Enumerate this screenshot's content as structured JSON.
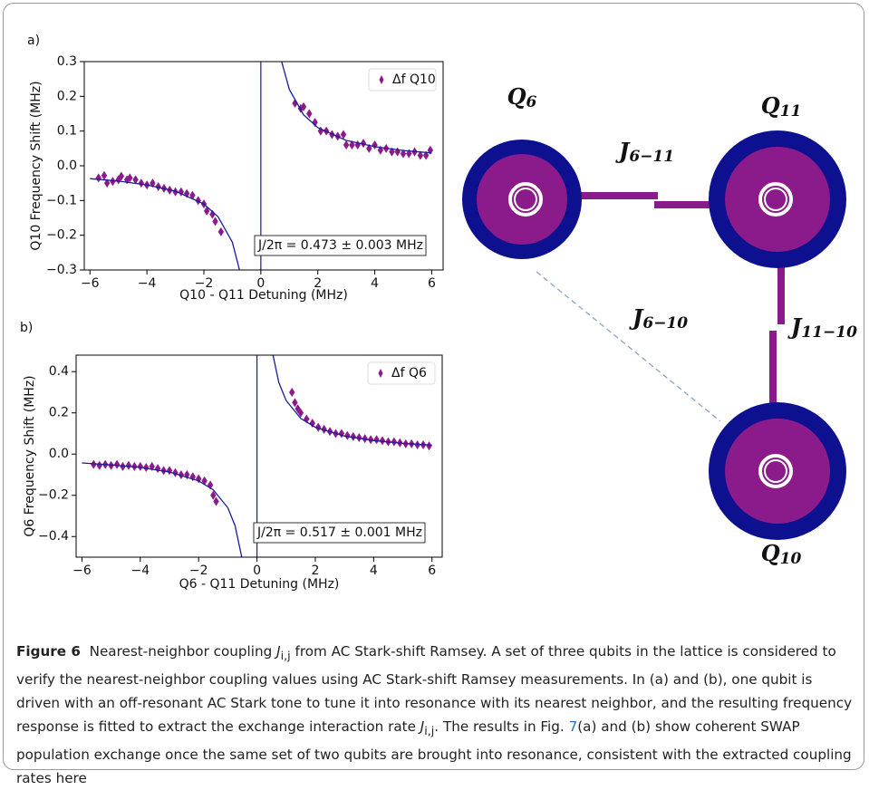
{
  "chart_data": [
    {
      "type": "scatter",
      "panel": "a)",
      "xlabel": "Q10 - Q11 Detuning (MHz)",
      "ylabel": "Q10 Frequency Shift (MHz)",
      "xlim": [
        -6.2,
        6.4
      ],
      "ylim": [
        -0.3,
        0.3
      ],
      "xticks": [
        {
          "value": -6,
          "label": "−6"
        },
        {
          "value": -4,
          "label": "−4"
        },
        {
          "value": -2,
          "label": "−2"
        },
        0,
        2,
        4,
        6
      ],
      "yticks": [
        {
          "value": -0.3,
          "label": "−0.3"
        },
        {
          "value": -0.2,
          "label": "−0.2"
        },
        {
          "value": -0.1,
          "label": "−0.1"
        },
        {
          "value": 0,
          "label": "0.0"
        },
        0.1,
        0.2,
        0.3
      ],
      "vline": 0,
      "legend": "upper right",
      "annotation": "J/2π = 0.473 ± 0.003 MHz",
      "series": [
        {
          "name": "Δf  Q10",
          "style": "markers",
          "color": "#8b1a8b",
          "x": [
            -5.7,
            -5.5,
            -5.4,
            -5.2,
            -5.0,
            -4.9,
            -4.7,
            -4.6,
            -4.4,
            -4.2,
            -4.0,
            -3.8,
            -3.6,
            -3.4,
            -3.2,
            -3.0,
            -2.8,
            -2.6,
            -2.4,
            -2.2,
            -2.0,
            -1.9,
            -1.7,
            -1.6,
            -1.4,
            1.2,
            1.4,
            1.5,
            1.7,
            1.9,
            2.1,
            2.3,
            2.5,
            2.7,
            2.9,
            3.0,
            3.2,
            3.4,
            3.6,
            3.8,
            4.0,
            4.2,
            4.4,
            4.6,
            4.8,
            5.0,
            5.2,
            5.4,
            5.6,
            5.8,
            5.95
          ],
          "values": [
            -0.035,
            -0.028,
            -0.05,
            -0.045,
            -0.04,
            -0.03,
            -0.04,
            -0.035,
            -0.04,
            -0.05,
            -0.055,
            -0.05,
            -0.06,
            -0.065,
            -0.07,
            -0.075,
            -0.075,
            -0.08,
            -0.085,
            -0.1,
            -0.11,
            -0.13,
            -0.14,
            -0.16,
            -0.19,
            0.18,
            0.165,
            0.17,
            0.15,
            0.125,
            0.1,
            0.1,
            0.09,
            0.085,
            0.09,
            0.06,
            0.06,
            0.06,
            0.065,
            0.05,
            0.06,
            0.045,
            0.05,
            0.04,
            0.04,
            0.035,
            0.035,
            0.04,
            0.03,
            0.03,
            0.045
          ]
        },
        {
          "style": "line",
          "color": "#1a1a9c",
          "x": [
            -6,
            -5,
            -4,
            -3,
            -2,
            -1.5,
            -1,
            -0.75,
            null,
            0.73,
            1,
            1.5,
            2,
            3,
            4,
            5,
            6
          ],
          "values": [
            -0.037,
            -0.044,
            -0.055,
            -0.073,
            -0.11,
            -0.147,
            -0.22,
            -0.3,
            null,
            0.3,
            0.22,
            0.147,
            0.11,
            0.073,
            0.055,
            0.044,
            0.037
          ]
        }
      ]
    },
    {
      "type": "scatter",
      "panel": "b)",
      "xlabel": "Q6 - Q11 Detuning (MHz)",
      "ylabel": "Q6 Frequency Shift (MHz)",
      "xlim": [
        -6.2,
        6.35
      ],
      "ylim": [
        -0.5,
        0.48
      ],
      "xticks": [
        {
          "value": -6,
          "label": "−6"
        },
        {
          "value": -4,
          "label": "−4"
        },
        {
          "value": -2,
          "label": "−2"
        },
        0,
        2,
        4,
        6
      ],
      "yticks": [
        {
          "value": -0.4,
          "label": "−0.4"
        },
        {
          "value": -0.2,
          "label": "−0.2"
        },
        {
          "value": 0,
          "label": "0.0"
        },
        0.2,
        0.4
      ],
      "vline": 0,
      "legend": "upper right",
      "annotation": "J/2π = 0.517 ± 0.001 MHz",
      "series": [
        {
          "name": "Δf  Q6",
          "style": "markers",
          "color": "#8b1a8b",
          "x": [
            -5.6,
            -5.4,
            -5.2,
            -5.0,
            -4.8,
            -4.6,
            -4.4,
            -4.2,
            -4.0,
            -3.8,
            -3.6,
            -3.4,
            -3.2,
            -3.0,
            -2.8,
            -2.6,
            -2.4,
            -2.2,
            -2.0,
            -1.8,
            -1.6,
            -1.5,
            -1.4,
            1.2,
            1.3,
            1.4,
            1.5,
            1.7,
            1.9,
            2.1,
            2.3,
            2.5,
            2.7,
            2.9,
            3.1,
            3.3,
            3.5,
            3.7,
            3.9,
            4.1,
            4.3,
            4.5,
            4.7,
            4.9,
            5.1,
            5.3,
            5.5,
            5.7,
            5.9
          ],
          "values": [
            -0.05,
            -0.055,
            -0.05,
            -0.055,
            -0.05,
            -0.06,
            -0.055,
            -0.06,
            -0.06,
            -0.065,
            -0.06,
            -0.07,
            -0.08,
            -0.08,
            -0.09,
            -0.1,
            -0.1,
            -0.11,
            -0.12,
            -0.13,
            -0.15,
            -0.2,
            -0.23,
            0.3,
            0.25,
            0.22,
            0.2,
            0.17,
            0.15,
            0.13,
            0.12,
            0.11,
            0.1,
            0.1,
            0.09,
            0.085,
            0.08,
            0.075,
            0.07,
            0.07,
            0.065,
            0.06,
            0.06,
            0.055,
            0.05,
            0.05,
            0.045,
            0.045,
            0.04
          ]
        },
        {
          "style": "line",
          "color": "#1a1a9c",
          "x": [
            -6,
            -5,
            -4,
            -3,
            -2,
            -1.5,
            -1,
            -0.75,
            -0.52,
            null,
            0.55,
            0.75,
            1,
            1.5,
            2,
            3,
            4,
            5,
            6
          ],
          "values": [
            -0.043,
            -0.052,
            -0.065,
            -0.087,
            -0.13,
            -0.173,
            -0.26,
            -0.347,
            -0.5,
            null,
            0.48,
            0.347,
            0.26,
            0.173,
            0.13,
            0.087,
            0.065,
            0.052,
            0.043
          ]
        }
      ]
    }
  ],
  "diagram": {
    "nodes": [
      {
        "label": "Q",
        "sub": "6"
      },
      {
        "label": "Q",
        "sub": "11"
      },
      {
        "label": "Q",
        "sub": "10"
      }
    ],
    "edges": [
      {
        "label": "J",
        "sub": "6−11"
      },
      {
        "label": "J",
        "sub": "11−10"
      },
      {
        "label": "J",
        "sub": "6−10"
      }
    ]
  },
  "caption": {
    "label": "Figure 6",
    "text1": "Nearest-neighbor coupling ",
    "symbol": "J",
    "symbol_sub": "i,j",
    "text2": " from AC Stark-shift Ramsey. A set of three qubits in the lattice is considered to verify the nearest-neighbor coupling values using AC Stark-shift Ramsey measurements. In (a) and (b), one qubit is driven with an off-resonant AC Stark tone to tune it into resonance with its nearest neighbor, and the resulting frequency response is fitted to extract the exchange interaction rate ",
    "text3": ". The results in Fig. ",
    "ref": "7",
    "text4": "(a) and (b) show coherent SWAP population exchange once the same set of two qubits are brought into resonance, consistent with the extracted coupling rates here"
  }
}
